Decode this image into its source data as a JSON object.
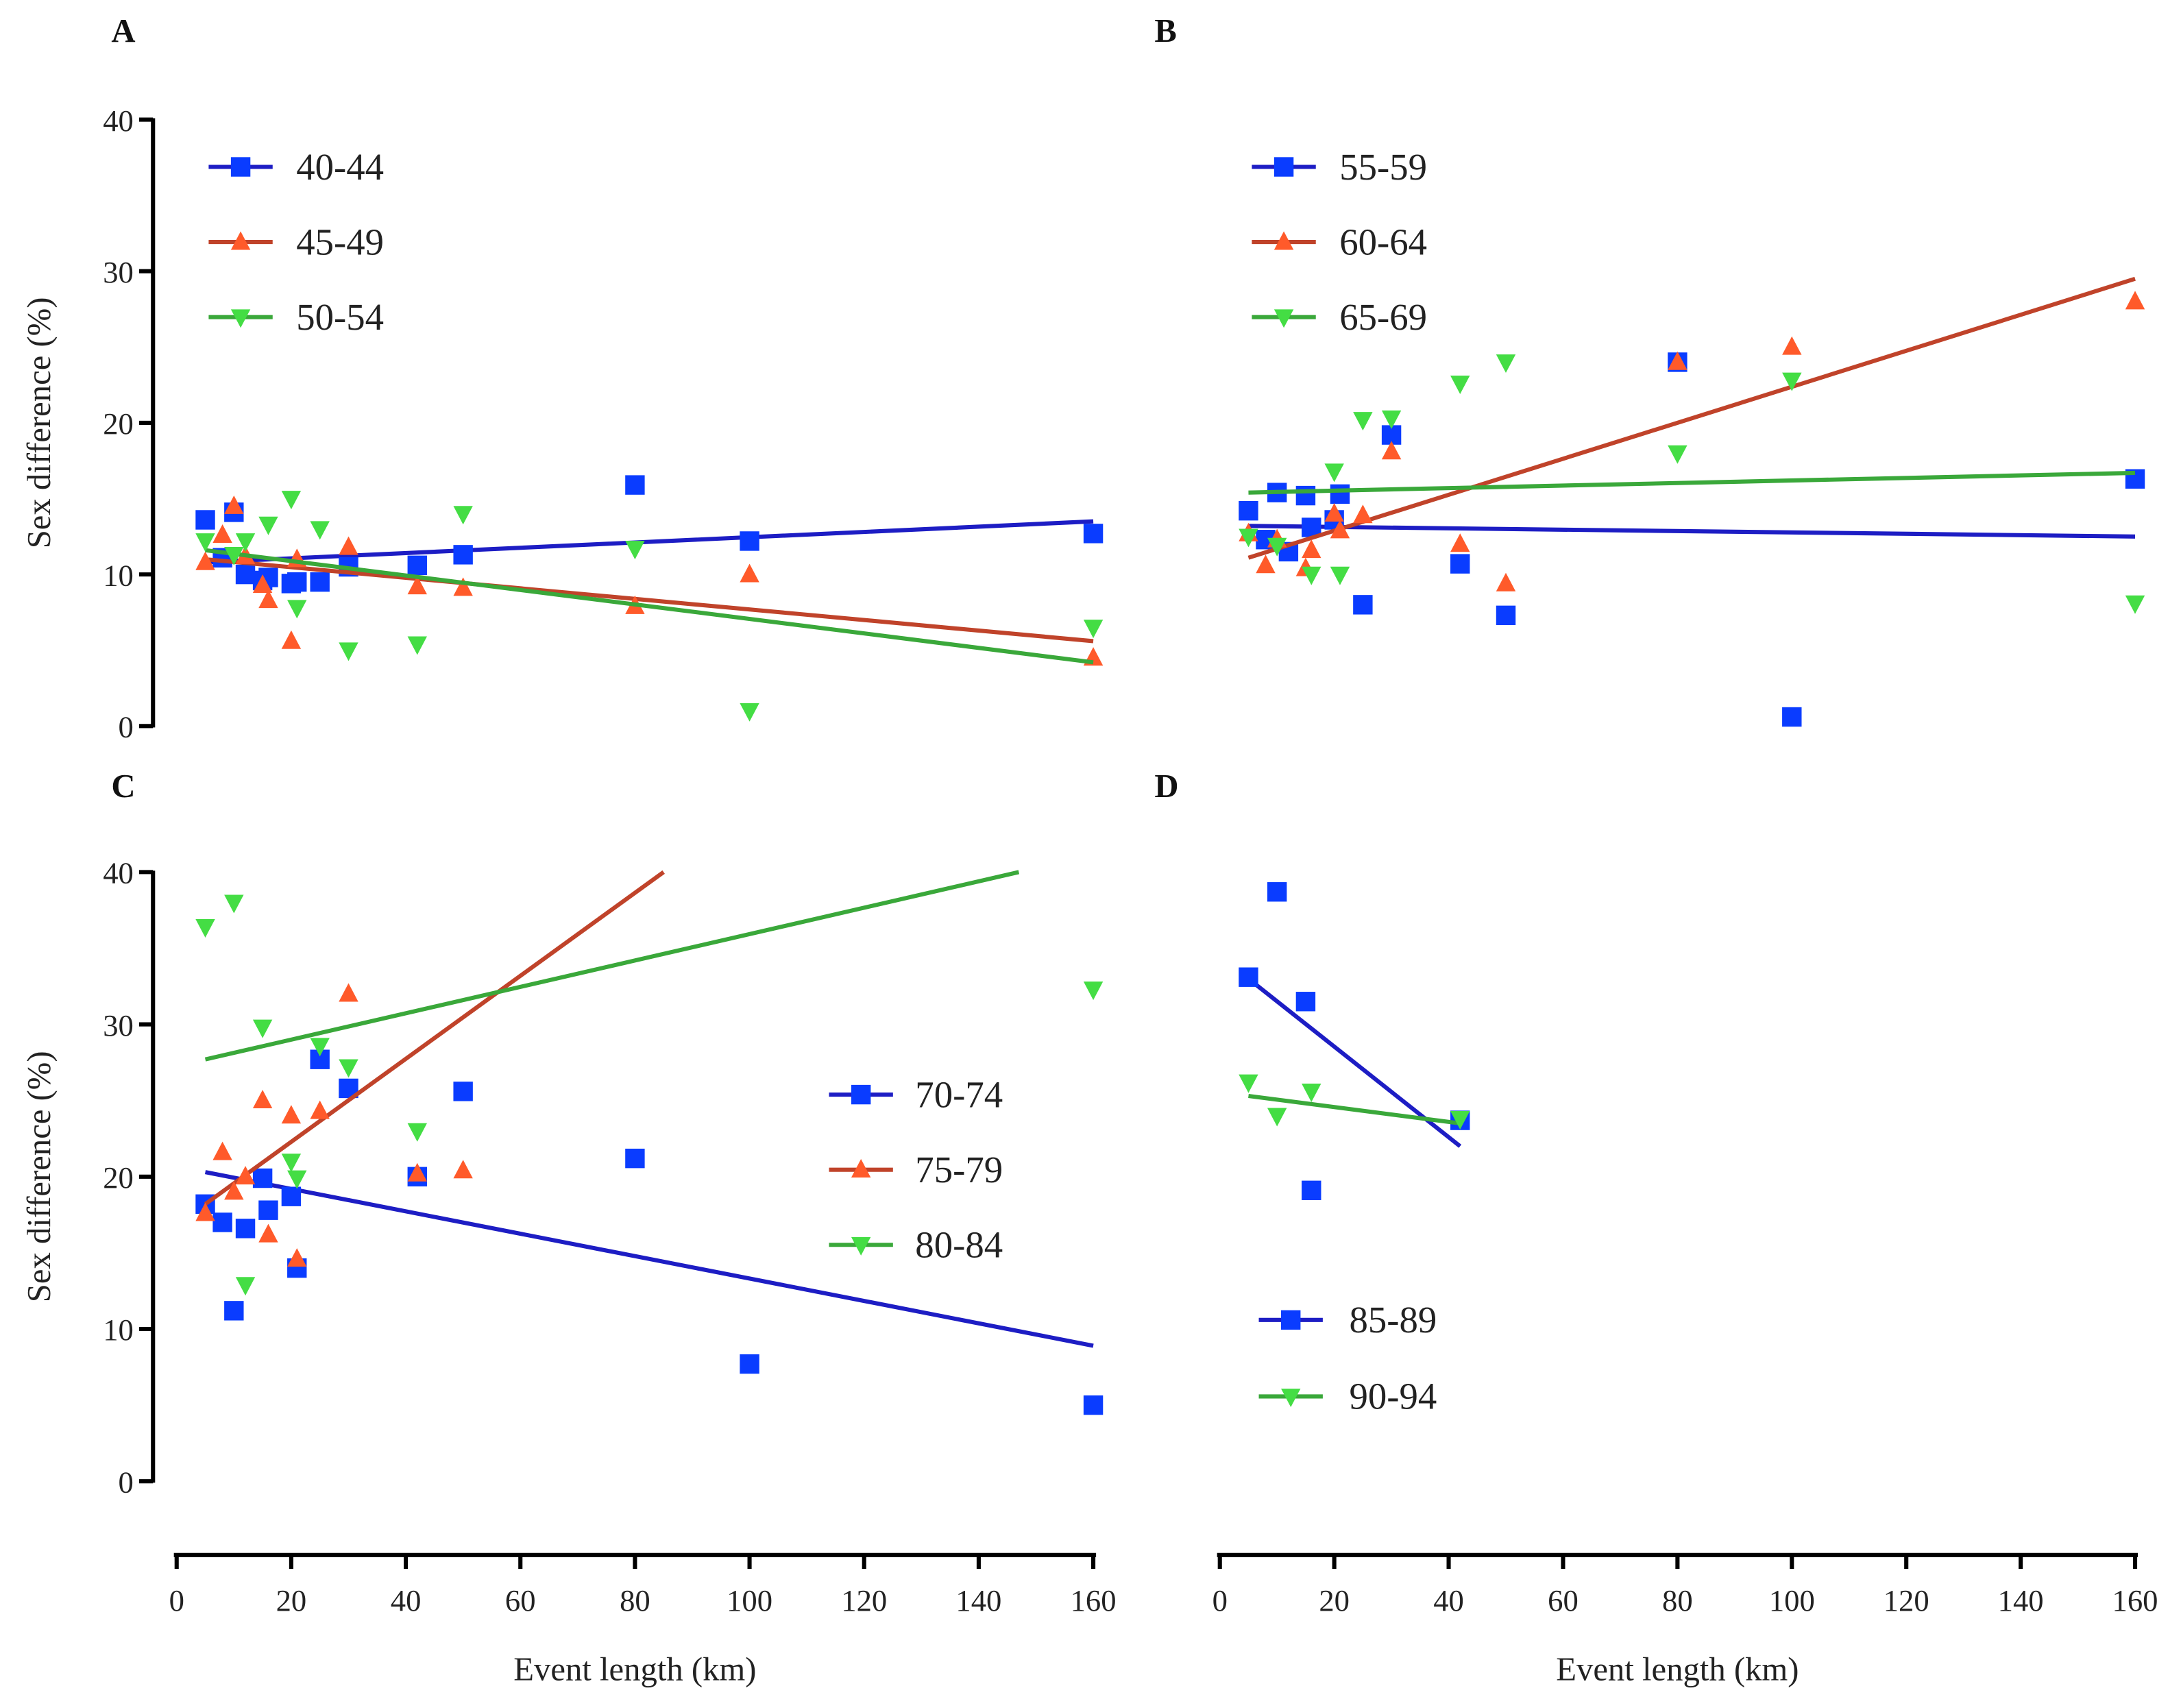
{
  "chart_data": [
    {
      "type": "scatter",
      "panel": "A",
      "xlabel": "",
      "ylabel": "Sex difference (%)",
      "xlim": [
        0,
        160
      ],
      "ylim": [
        0,
        40
      ],
      "yticks": [
        0,
        10,
        20,
        30,
        40
      ],
      "xticks": [],
      "legend": "top-left",
      "series": [
        {
          "name": "40-44",
          "marker": "square",
          "color": "#0a3cff",
          "line_color": "#1d1dc4",
          "points": [
            [
              5,
              13.6
            ],
            [
              8,
              11.1
            ],
            [
              10,
              14.1
            ],
            [
              12,
              10
            ],
            [
              15,
              9.6
            ],
            [
              16,
              9.8
            ],
            [
              20,
              9.4
            ],
            [
              21,
              9.5
            ],
            [
              25,
              9.5
            ],
            [
              30,
              10.5
            ],
            [
              42,
              10.6
            ],
            [
              50,
              11.3
            ],
            [
              80,
              15.9
            ],
            [
              100,
              12.2
            ],
            [
              160,
              12.7
            ]
          ],
          "fit": [
            [
              5,
              10.8
            ],
            [
              160,
              13.5
            ]
          ]
        },
        {
          "name": "45-49",
          "marker": "triangle-up",
          "color": "#ff5a2a",
          "line_color": "#c0432a",
          "points": [
            [
              5,
              10.8
            ],
            [
              8,
              12.6
            ],
            [
              10,
              14.5
            ],
            [
              12,
              11.2
            ],
            [
              15,
              9.3
            ],
            [
              16,
              8.3
            ],
            [
              20,
              5.6
            ],
            [
              21,
              11
            ],
            [
              30,
              11.8
            ],
            [
              42,
              9.2
            ],
            [
              50,
              9.1
            ],
            [
              80,
              7.9
            ],
            [
              100,
              10
            ],
            [
              160,
              4.5
            ]
          ],
          "fit": [
            [
              5,
              11
            ],
            [
              160,
              5.6
            ]
          ]
        },
        {
          "name": "50-54",
          "marker": "triangle-down",
          "color": "#44dd44",
          "line_color": "#3aa83a",
          "points": [
            [
              5,
              12.2
            ],
            [
              10,
              11.3
            ],
            [
              12,
              12.2
            ],
            [
              16,
              13.3
            ],
            [
              20,
              15
            ],
            [
              21,
              7.8
            ],
            [
              25,
              13
            ],
            [
              30,
              5
            ],
            [
              42,
              5.4
            ],
            [
              50,
              14
            ],
            [
              80,
              11.7
            ],
            [
              100,
              1
            ],
            [
              160,
              6.5
            ]
          ],
          "fit": [
            [
              5,
              11.6
            ],
            [
              160,
              4.2
            ]
          ]
        }
      ]
    },
    {
      "type": "scatter",
      "panel": "B",
      "xlabel": "",
      "ylabel": "",
      "xlim": [
        0,
        160
      ],
      "ylim": [
        0,
        40
      ],
      "yticks": [],
      "xticks": [],
      "legend": "top-left",
      "series": [
        {
          "name": "55-59",
          "marker": "square",
          "color": "#0a3cff",
          "line_color": "#1d1dc4",
          "points": [
            [
              5,
              14.2
            ],
            [
              8,
              12.3
            ],
            [
              10,
              15.4
            ],
            [
              12,
              11.5
            ],
            [
              15,
              15.2
            ],
            [
              16,
              13.1
            ],
            [
              20,
              13.6
            ],
            [
              21,
              15.3
            ],
            [
              25,
              8
            ],
            [
              30,
              19.2
            ],
            [
              42,
              10.7
            ],
            [
              50,
              7.3
            ],
            [
              80,
              24
            ],
            [
              100,
              0.6
            ],
            [
              160,
              16.3
            ]
          ],
          "fit": [
            [
              5,
              13.2
            ],
            [
              160,
              12.5
            ]
          ]
        },
        {
          "name": "60-64",
          "marker": "triangle-up",
          "color": "#ff5a2a",
          "line_color": "#c0432a",
          "points": [
            [
              5,
              12.7
            ],
            [
              8,
              10.6
            ],
            [
              10,
              12.3
            ],
            [
              15,
              10.4
            ],
            [
              16,
              11.6
            ],
            [
              20,
              14
            ],
            [
              21,
              12.9
            ],
            [
              25,
              13.9
            ],
            [
              30,
              18.1
            ],
            [
              42,
              12
            ],
            [
              50,
              9.4
            ],
            [
              80,
              24
            ],
            [
              100,
              25
            ],
            [
              160,
              28
            ]
          ],
          "fit": [
            [
              5,
              11.1
            ],
            [
              160,
              29.5
            ]
          ]
        },
        {
          "name": "65-69",
          "marker": "triangle-down",
          "color": "#44dd44",
          "line_color": "#3aa83a",
          "points": [
            [
              5,
              12.5
            ],
            [
              10,
              11.9
            ],
            [
              16,
              10
            ],
            [
              20,
              16.8
            ],
            [
              21,
              10
            ],
            [
              25,
              20.2
            ],
            [
              30,
              20.3
            ],
            [
              42,
              22.6
            ],
            [
              50,
              24
            ],
            [
              80,
              18
            ],
            [
              100,
              22.8
            ],
            [
              160,
              8.1
            ]
          ],
          "fit": [
            [
              5,
              15.4
            ],
            [
              160,
              16.7
            ]
          ]
        }
      ]
    },
    {
      "type": "scatter",
      "panel": "C",
      "xlabel": "Event length (km)",
      "ylabel": "Sex difference (%)",
      "xlim": [
        0,
        160
      ],
      "ylim": [
        0,
        40
      ],
      "yticks": [
        0,
        10,
        20,
        30,
        40
      ],
      "xticks": [
        0,
        20,
        40,
        60,
        80,
        100,
        120,
        140,
        160
      ],
      "legend": "center-right",
      "series": [
        {
          "name": "70-74",
          "marker": "square",
          "color": "#0a3cff",
          "line_color": "#1d1dc4",
          "points": [
            [
              5,
              18.2
            ],
            [
              8,
              17
            ],
            [
              10,
              11.2
            ],
            [
              12,
              16.6
            ],
            [
              15,
              19.9
            ],
            [
              16,
              17.8
            ],
            [
              20,
              18.7
            ],
            [
              21,
              14
            ],
            [
              25,
              27.7
            ],
            [
              30,
              25.8
            ],
            [
              42,
              20
            ],
            [
              50,
              25.6
            ],
            [
              80,
              21.2
            ],
            [
              100,
              7.7
            ],
            [
              160,
              5
            ]
          ],
          "fit": [
            [
              5,
              20.3
            ],
            [
              160,
              8.9
            ]
          ]
        },
        {
          "name": "75-79",
          "marker": "triangle-up",
          "color": "#ff5a2a",
          "line_color": "#c0432a",
          "points": [
            [
              5,
              17.6
            ],
            [
              8,
              21.6
            ],
            [
              10,
              19
            ],
            [
              12,
              20
            ],
            [
              15,
              25
            ],
            [
              16,
              16.2
            ],
            [
              20,
              24
            ],
            [
              21,
              14.6
            ],
            [
              25,
              24.3
            ],
            [
              30,
              32
            ],
            [
              42,
              20.2
            ],
            [
              50,
              20.4
            ]
          ],
          "fit": [
            [
              5,
              18.2
            ],
            [
              85,
              40
            ]
          ]
        },
        {
          "name": "80-84",
          "marker": "triangle-down",
          "color": "#44dd44",
          "line_color": "#3aa83a",
          "points": [
            [
              5,
              36.4
            ],
            [
              10,
              38
            ],
            [
              12,
              12.9
            ],
            [
              15,
              29.8
            ],
            [
              20,
              21
            ],
            [
              21,
              19.9
            ],
            [
              25,
              28.6
            ],
            [
              30,
              27.2
            ],
            [
              42,
              23
            ],
            [
              160,
              32.3
            ]
          ],
          "fit": [
            [
              5,
              27.7
            ],
            [
              147,
              40
            ]
          ]
        }
      ]
    },
    {
      "type": "scatter",
      "panel": "D",
      "xlabel": "Event length (km)",
      "ylabel": "",
      "xlim": [
        0,
        160
      ],
      "ylim": [
        0,
        40
      ],
      "yticks": [],
      "xticks": [
        0,
        20,
        40,
        60,
        80,
        100,
        120,
        140,
        160
      ],
      "legend": "bottom-left",
      "series": [
        {
          "name": "85-89",
          "marker": "square",
          "color": "#0a3cff",
          "line_color": "#1d1dc4",
          "points": [
            [
              5,
              33.1
            ],
            [
              10,
              38.7
            ],
            [
              15,
              31.5
            ],
            [
              16,
              19.1
            ],
            [
              42,
              23.7
            ]
          ],
          "fit": [
            [
              5,
              33
            ],
            [
              42,
              22
            ]
          ]
        },
        {
          "name": "90-94",
          "marker": "triangle-down",
          "color": "#44dd44",
          "line_color": "#3aa83a",
          "points": [
            [
              5,
              26.2
            ],
            [
              10,
              24
            ],
            [
              16,
              25.6
            ],
            [
              42,
              23.8
            ]
          ],
          "fit": [
            [
              5,
              25.3
            ],
            [
              42,
              23.5
            ]
          ]
        }
      ]
    }
  ]
}
